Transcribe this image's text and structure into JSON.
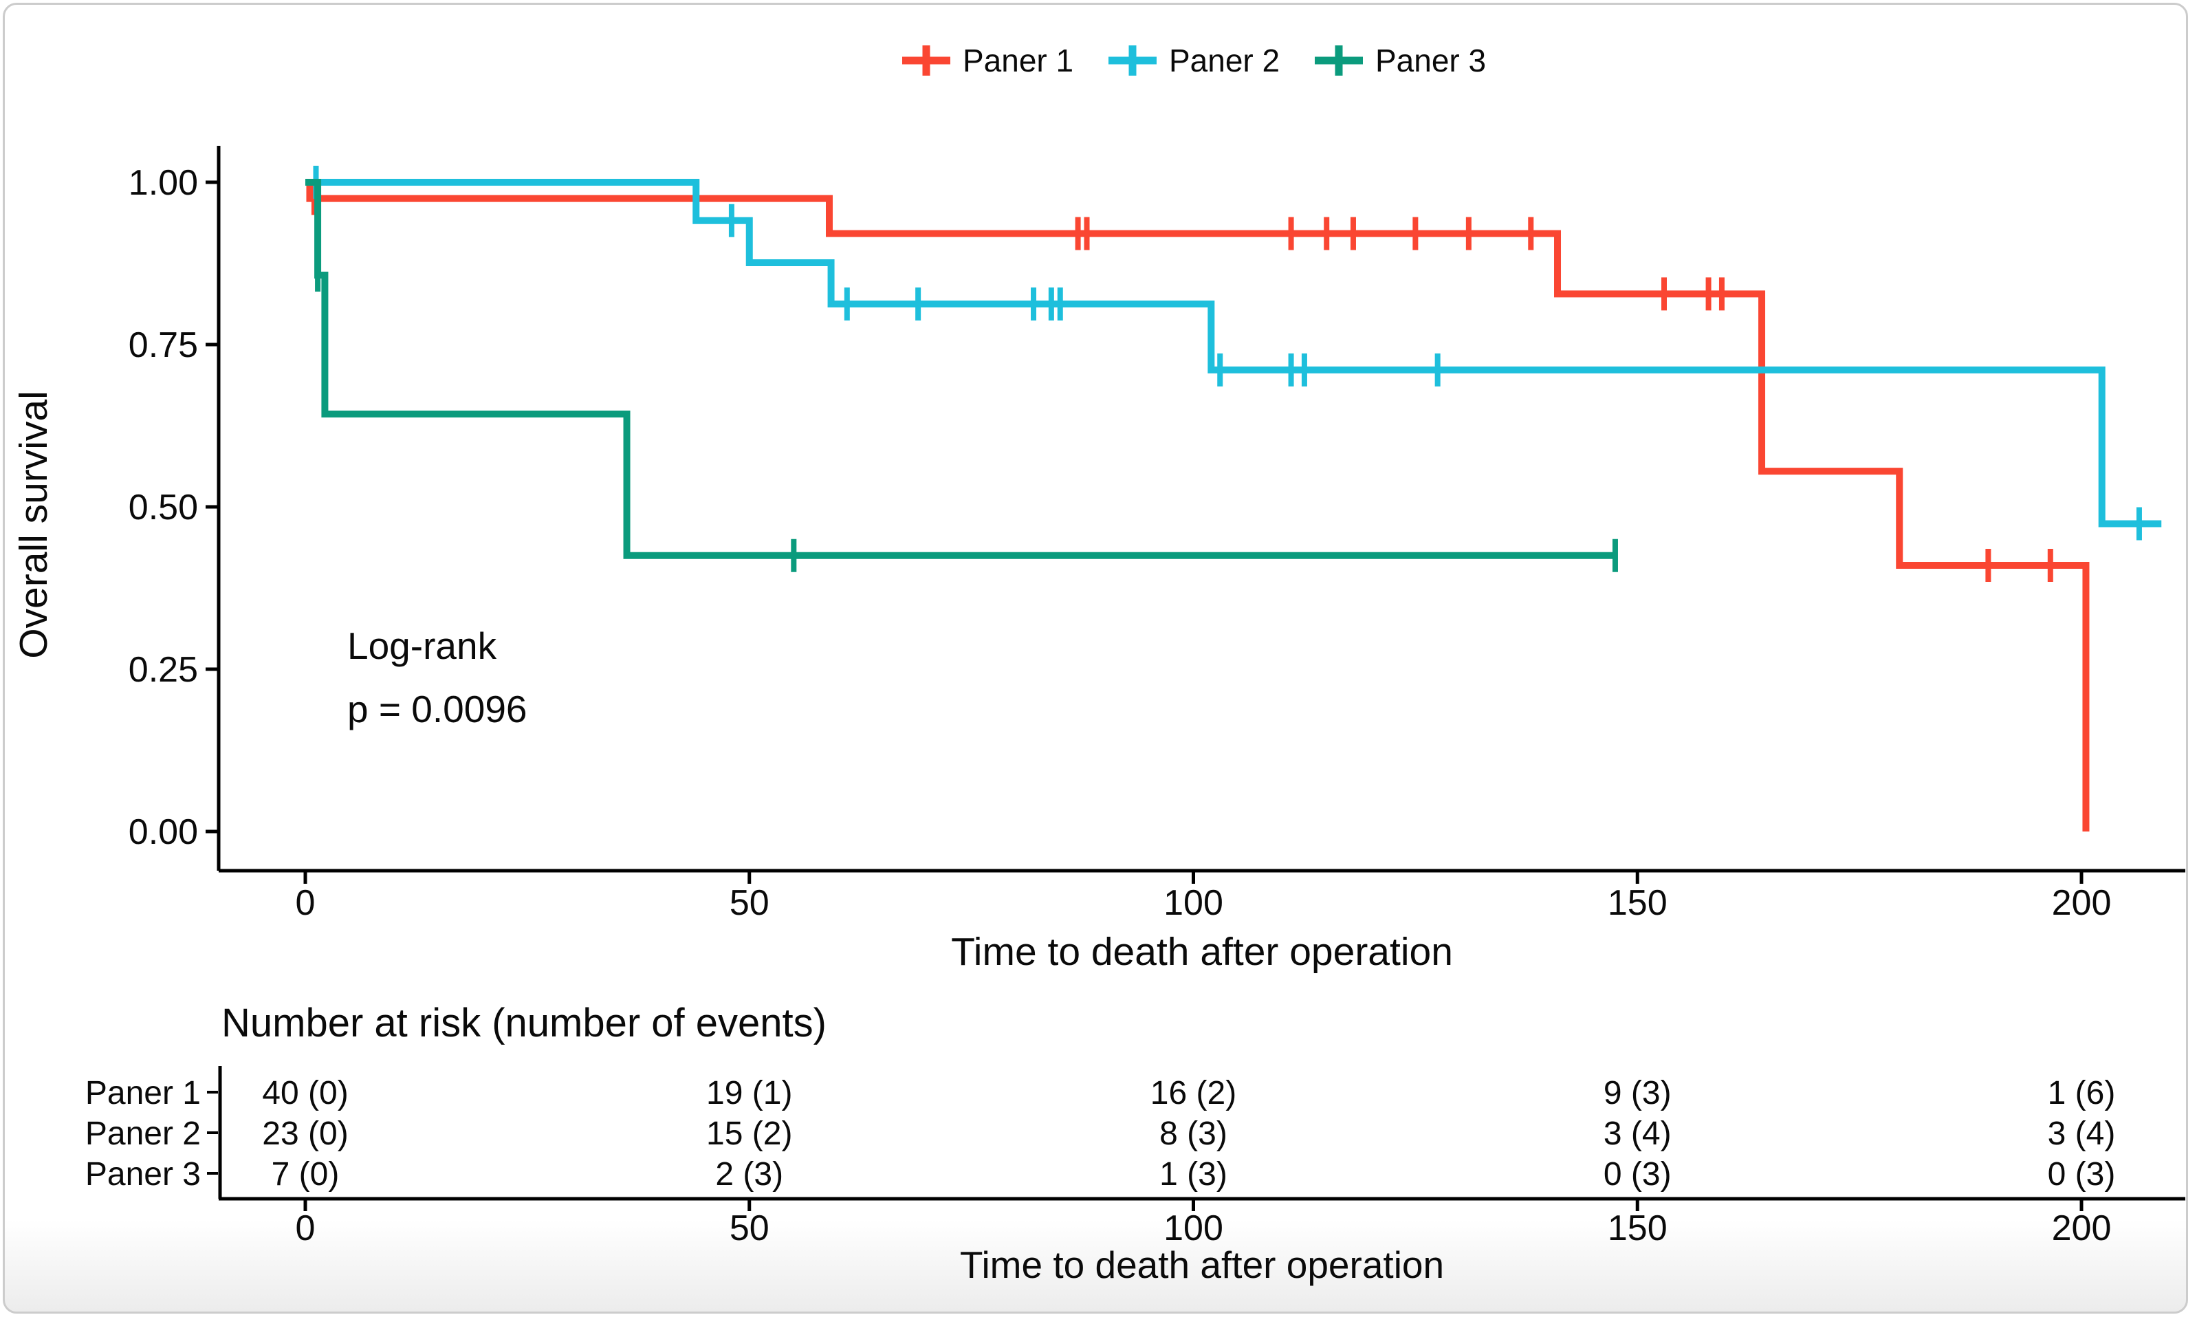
{
  "chart_data": {
    "type": "line",
    "subtype": "kaplan-meier-step",
    "title": "",
    "legend": {
      "position": "top-center"
    },
    "x_axis": {
      "label": "Time to death after operation",
      "range": [
        0,
        210
      ],
      "ticks": [
        {
          "value": 0,
          "label": "0"
        },
        {
          "value": 50,
          "label": "50"
        },
        {
          "value": 100,
          "label": "100"
        },
        {
          "value": 150,
          "label": "150"
        },
        {
          "value": 200,
          "label": "200"
        }
      ]
    },
    "y_axis": {
      "label": "Overall survival",
      "range": [
        0,
        1
      ],
      "ticks": [
        {
          "value": 1.0,
          "label": "1.00"
        },
        {
          "value": 0.75,
          "label": "0.75"
        },
        {
          "value": 0.5,
          "label": "0.50"
        },
        {
          "value": 0.25,
          "label": "0.25"
        },
        {
          "value": 0.0,
          "label": "0.00"
        }
      ]
    },
    "annotation": {
      "line1": "Log-rank",
      "line2": "p = 0.0096"
    },
    "series": [
      {
        "name": "Paner 1",
        "color": "#FA4632",
        "km": [
          [
            0,
            1.0
          ],
          [
            0.5,
            0.975
          ],
          [
            59,
            0.921
          ],
          [
            141,
            0.828
          ],
          [
            164,
            0.555
          ],
          [
            179.5,
            0.41
          ],
          [
            200.5,
            0.0
          ]
        ],
        "end": 200.5,
        "censors": [
          [
            1,
            0.975
          ],
          [
            87,
            0.921
          ],
          [
            88,
            0.921
          ],
          [
            111,
            0.921
          ],
          [
            115,
            0.921
          ],
          [
            118,
            0.921
          ],
          [
            125,
            0.921
          ],
          [
            131,
            0.921
          ],
          [
            138,
            0.921
          ],
          [
            153,
            0.828
          ],
          [
            158,
            0.828
          ],
          [
            159.5,
            0.828
          ],
          [
            189.5,
            0.41
          ],
          [
            196.5,
            0.41
          ]
        ]
      },
      {
        "name": "Paner 2",
        "color": "#1EBFDC",
        "km": [
          [
            0,
            1.0
          ],
          [
            44,
            0.941
          ],
          [
            50,
            0.876
          ],
          [
            59.2,
            0.8125
          ],
          [
            102,
            0.711
          ],
          [
            202.3,
            0.474
          ]
        ],
        "end": 209,
        "censors": [
          [
            1.2,
            1.0
          ],
          [
            48,
            0.941
          ],
          [
            61,
            0.8125
          ],
          [
            69,
            0.8125
          ],
          [
            82,
            0.8125
          ],
          [
            84,
            0.8125
          ],
          [
            85,
            0.8125
          ],
          [
            103,
            0.711
          ],
          [
            111,
            0.711
          ],
          [
            112.5,
            0.711
          ],
          [
            127.5,
            0.711
          ],
          [
            206.5,
            0.474
          ]
        ]
      },
      {
        "name": "Paner 3",
        "color": "#0B9B7D",
        "km": [
          [
            0,
            1.0
          ],
          [
            1.4,
            0.857
          ],
          [
            2.2,
            0.643
          ],
          [
            36.2,
            0.425
          ]
        ],
        "end": 147.5,
        "censors": [
          [
            1.4,
            0.857
          ],
          [
            55,
            0.425
          ],
          [
            147.5,
            0.425
          ]
        ]
      }
    ],
    "risk_table": {
      "title": "Number at risk (number of events)",
      "x_label": "Time to death after operation",
      "ticks": [
        {
          "value": 0,
          "label": "0"
        },
        {
          "value": 50,
          "label": "50"
        },
        {
          "value": 100,
          "label": "100"
        },
        {
          "value": 150,
          "label": "150"
        },
        {
          "value": 200,
          "label": "200"
        }
      ],
      "rows": [
        {
          "label": "Paner 1",
          "color": "#FA4632",
          "values": [
            "40 (0)",
            "19 (1)",
            "16 (2)",
            "9 (3)",
            "1 (6)"
          ]
        },
        {
          "label": "Paner 2",
          "color": "#1EBFDC",
          "values": [
            "23 (0)",
            "15 (2)",
            "8 (3)",
            "3 (4)",
            "3 (4)"
          ]
        },
        {
          "label": "Paner 3",
          "color": "#0B9B7D",
          "values": [
            "7 (0)",
            "2 (3)",
            "1 (3)",
            "0 (3)",
            "0 (3)"
          ]
        }
      ]
    }
  }
}
